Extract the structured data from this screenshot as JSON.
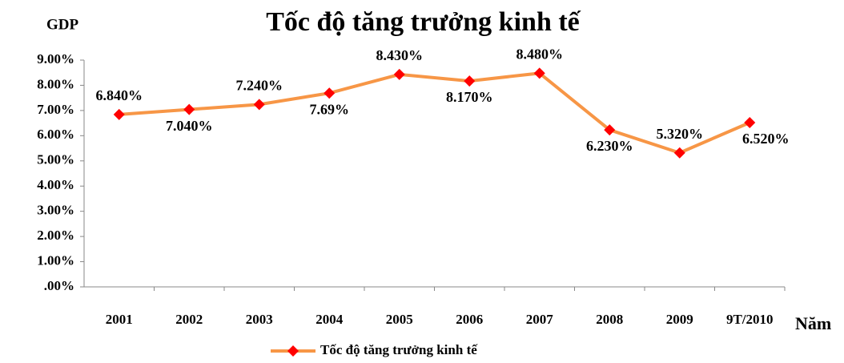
{
  "chart_data": {
    "type": "line",
    "title": "Tốc độ tăng trưởng kinh tế",
    "y_axis_label": "GDP",
    "x_axis_label": "Năm",
    "categories": [
      "2001",
      "2002",
      "2003",
      "2004",
      "2005",
      "2006",
      "2007",
      "2008",
      "2009",
      "9T/2010"
    ],
    "series": [
      {
        "name": "Tốc độ tăng trưởng kinh tế",
        "color": "#f79646",
        "marker_color": "#ff0000",
        "values": [
          6.84,
          7.04,
          7.24,
          7.69,
          8.43,
          8.17,
          8.48,
          6.23,
          5.32,
          6.52
        ],
        "value_labels": [
          "6.840%",
          "7.040%",
          "7.240%",
          "7.69%",
          "8.430%",
          "8.170%",
          "8.480%",
          "6.230%",
          "5.320%",
          "6.520%"
        ]
      }
    ],
    "ylim": [
      0,
      9
    ],
    "yticks": [
      {
        "value": 0,
        "label": ".00%"
      },
      {
        "value": 1,
        "label": "1.00%"
      },
      {
        "value": 2,
        "label": "2.00%"
      },
      {
        "value": 3,
        "label": "3.00%"
      },
      {
        "value": 4,
        "label": "4.00%"
      },
      {
        "value": 5,
        "label": "5.00%"
      },
      {
        "value": 6,
        "label": "6.00%"
      },
      {
        "value": 7,
        "label": "7.00%"
      },
      {
        "value": 8,
        "label": "8.00%"
      },
      {
        "value": 9,
        "label": "9.00%"
      }
    ],
    "grid": false,
    "legend": "bottom"
  }
}
